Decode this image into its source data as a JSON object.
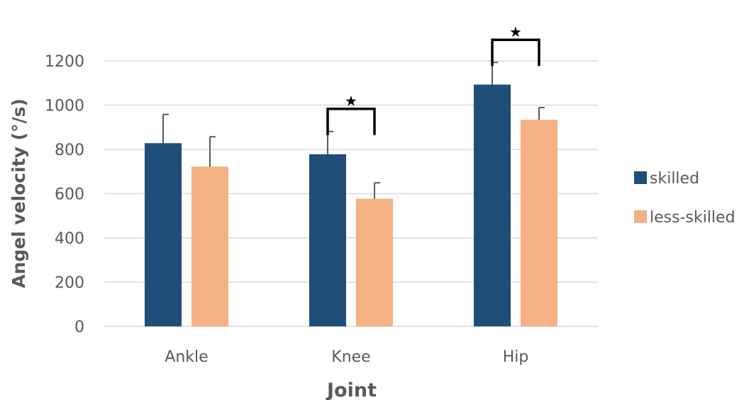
{
  "chart_data": {
    "type": "bar",
    "title": "",
    "xlabel": "Joint",
    "ylabel": "Angel velocity (°/s)",
    "categories": [
      "Ankle",
      "Knee",
      "Hip"
    ],
    "series": [
      {
        "name": "skilled",
        "color": "#1f4e79",
        "values": [
          828,
          778,
          1093
        ],
        "error": [
          130,
          103,
          100
        ]
      },
      {
        "name": "less-skilled",
        "color": "#f4b183",
        "values": [
          722,
          577,
          934
        ],
        "error": [
          135,
          72,
          55
        ]
      }
    ],
    "ylim": [
      0,
      1200
    ],
    "yticks": [
      0,
      200,
      400,
      600,
      800,
      1000,
      1200
    ],
    "grid": true,
    "legend": "right",
    "significance": [
      {
        "category": "Knee",
        "label": "★"
      },
      {
        "category": "Hip",
        "label": "★"
      }
    ]
  }
}
